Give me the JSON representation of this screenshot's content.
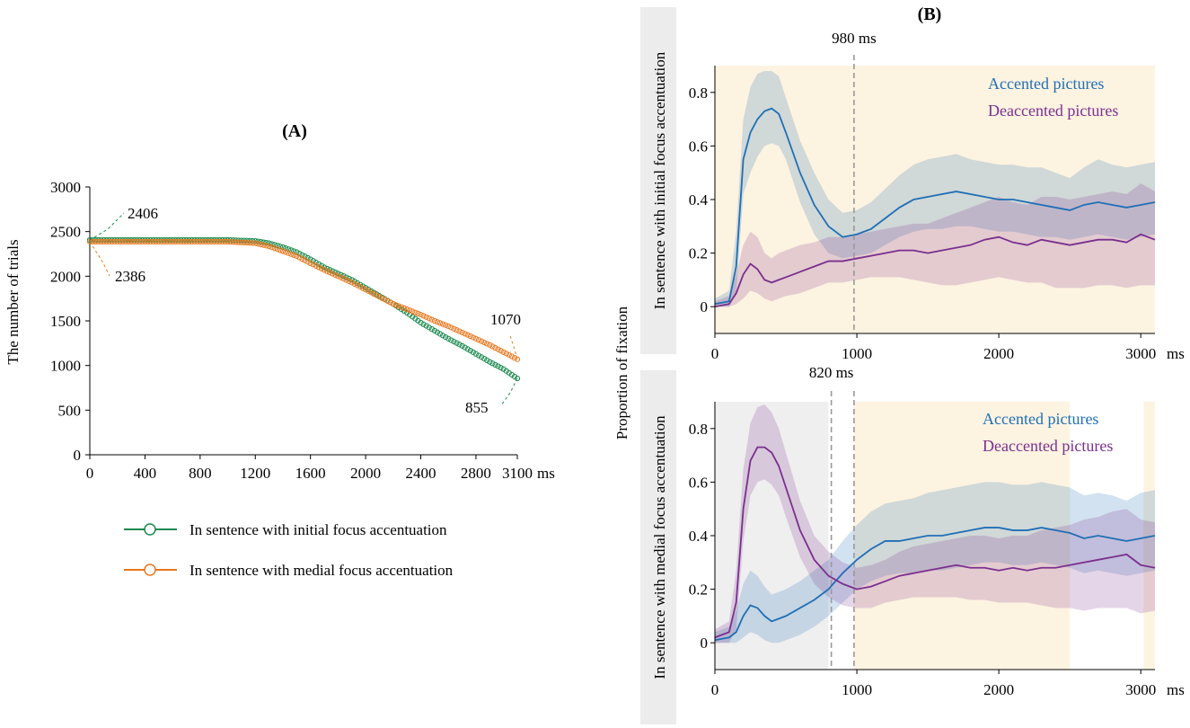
{
  "chart_data": [
    {
      "id": "A",
      "type": "line",
      "panel_label": "(A)",
      "title": "",
      "xlabel": "ms",
      "ylabel": "The number of trials",
      "xlim": [
        0,
        3100
      ],
      "ylim": [
        0,
        3000
      ],
      "x_ticks": [
        0,
        400,
        800,
        1200,
        1600,
        2000,
        2400,
        2800,
        3100
      ],
      "x_tick_labels": [
        "0",
        "400",
        "800",
        "1200",
        "1600",
        "2000",
        "2400",
        "2800",
        "3100"
      ],
      "y_ticks": [
        0,
        500,
        1000,
        1500,
        2000,
        2500,
        3000
      ],
      "y_tick_labels": [
        "0",
        "500",
        "1000",
        "1500",
        "2000",
        "2500",
        "3000"
      ],
      "grid": false,
      "series": [
        {
          "name": "In sentence with initial focus accentuation",
          "color": "#1a8a4e",
          "marker": "open-circle",
          "x": [
            0,
            400,
            800,
            1000,
            1200,
            1300,
            1400,
            1500,
            1600,
            1700,
            1800,
            1900,
            2000,
            2100,
            2200,
            2300,
            2400,
            2500,
            2600,
            2700,
            2800,
            2900,
            3000,
            3100
          ],
          "values": [
            2406,
            2406,
            2406,
            2406,
            2395,
            2370,
            2325,
            2270,
            2190,
            2100,
            2030,
            1960,
            1870,
            1780,
            1690,
            1590,
            1480,
            1390,
            1300,
            1220,
            1130,
            1040,
            960,
            855
          ]
        },
        {
          "name": "In sentence with medial focus accentuation",
          "color": "#e8771e",
          "marker": "open-circle",
          "x": [
            0,
            400,
            800,
            1000,
            1200,
            1300,
            1400,
            1500,
            1600,
            1700,
            1800,
            1900,
            2000,
            2100,
            2200,
            2300,
            2400,
            2500,
            2600,
            2700,
            2800,
            2900,
            3000,
            3100
          ],
          "values": [
            2386,
            2386,
            2386,
            2386,
            2370,
            2335,
            2280,
            2225,
            2145,
            2070,
            2000,
            1930,
            1850,
            1770,
            1690,
            1630,
            1570,
            1500,
            1440,
            1370,
            1300,
            1230,
            1150,
            1070
          ]
        }
      ],
      "annotations": [
        {
          "text": "2406",
          "x": 0,
          "y": 2406,
          "color": "#1a8a4e"
        },
        {
          "text": "2386",
          "x": 0,
          "y": 2386,
          "color": "#e8771e"
        },
        {
          "text": "1070",
          "x": 3100,
          "y": 1070,
          "color": "#e8771e"
        },
        {
          "text": "855",
          "x": 3100,
          "y": 855,
          "color": "#1a8a4e"
        }
      ]
    },
    {
      "id": "B-top",
      "type": "line",
      "panel_label": "(B)",
      "title": "",
      "row_label": "In sentence with initial focus accentuation",
      "shared_ylabel": "Proportion of fixation",
      "xlabel": "ms",
      "xlim": [
        0,
        3100
      ],
      "ylim": [
        -0.1,
        0.9
      ],
      "x_ticks": [
        0,
        1000,
        2000,
        3000
      ],
      "x_tick_labels": [
        "0",
        "1000",
        "2000",
        "3000"
      ],
      "y_ticks": [
        0,
        0.2,
        0.4,
        0.6,
        0.8
      ],
      "y_tick_labels": [
        "0",
        "0.2",
        "0.4",
        "0.6",
        "0.8"
      ],
      "grid": false,
      "shaded_regions": [
        {
          "from": 0,
          "to": 3100,
          "color": "#fdf3e1"
        }
      ],
      "vlines": [
        {
          "x": 980,
          "label": "980 ms"
        }
      ],
      "series": [
        {
          "name": "Accented pictures",
          "color": "#1f6fb5",
          "x": [
            0,
            100,
            150,
            200,
            250,
            300,
            350,
            400,
            450,
            500,
            600,
            700,
            800,
            900,
            1000,
            1100,
            1200,
            1300,
            1400,
            1500,
            1600,
            1700,
            1800,
            1900,
            2000,
            2100,
            2200,
            2300,
            2400,
            2500,
            2600,
            2700,
            2800,
            2900,
            3000,
            3100
          ],
          "values": [
            0.01,
            0.02,
            0.15,
            0.55,
            0.65,
            0.7,
            0.73,
            0.74,
            0.72,
            0.65,
            0.5,
            0.38,
            0.3,
            0.26,
            0.27,
            0.29,
            0.33,
            0.37,
            0.4,
            0.41,
            0.42,
            0.43,
            0.42,
            0.41,
            0.4,
            0.4,
            0.39,
            0.38,
            0.37,
            0.36,
            0.38,
            0.39,
            0.38,
            0.37,
            0.38,
            0.39
          ],
          "ci_low": [
            0.0,
            0.0,
            0.05,
            0.42,
            0.5,
            0.56,
            0.6,
            0.61,
            0.6,
            0.55,
            0.39,
            0.27,
            0.2,
            0.18,
            0.19,
            0.2,
            0.23,
            0.26,
            0.28,
            0.29,
            0.29,
            0.3,
            0.3,
            0.29,
            0.28,
            0.28,
            0.27,
            0.26,
            0.26,
            0.25,
            0.26,
            0.27,
            0.26,
            0.25,
            0.26,
            0.27
          ],
          "ci_high": [
            0.03,
            0.06,
            0.28,
            0.7,
            0.82,
            0.87,
            0.88,
            0.88,
            0.86,
            0.78,
            0.62,
            0.5,
            0.4,
            0.35,
            0.36,
            0.39,
            0.44,
            0.49,
            0.53,
            0.55,
            0.56,
            0.57,
            0.55,
            0.54,
            0.53,
            0.53,
            0.52,
            0.52,
            0.5,
            0.48,
            0.52,
            0.55,
            0.53,
            0.52,
            0.53,
            0.54
          ]
        },
        {
          "name": "Deaccented pictures",
          "color": "#7b2f8e",
          "x": [
            0,
            100,
            150,
            200,
            250,
            300,
            350,
            400,
            450,
            500,
            600,
            700,
            800,
            900,
            1000,
            1100,
            1200,
            1300,
            1400,
            1500,
            1600,
            1700,
            1800,
            1900,
            2000,
            2100,
            2200,
            2300,
            2400,
            2500,
            2600,
            2700,
            2800,
            2900,
            3000,
            3100
          ],
          "values": [
            0.0,
            0.01,
            0.05,
            0.12,
            0.16,
            0.14,
            0.1,
            0.09,
            0.1,
            0.11,
            0.13,
            0.15,
            0.17,
            0.17,
            0.18,
            0.19,
            0.2,
            0.21,
            0.21,
            0.2,
            0.21,
            0.22,
            0.23,
            0.25,
            0.26,
            0.24,
            0.23,
            0.25,
            0.24,
            0.23,
            0.24,
            0.25,
            0.25,
            0.24,
            0.27,
            0.25
          ],
          "ci_low": [
            0.0,
            0.0,
            0.01,
            0.03,
            0.06,
            0.05,
            0.03,
            0.02,
            0.03,
            0.04,
            0.05,
            0.07,
            0.09,
            0.09,
            0.1,
            0.11,
            0.11,
            0.11,
            0.1,
            0.09,
            0.08,
            0.08,
            0.09,
            0.1,
            0.11,
            0.1,
            0.09,
            0.09,
            0.07,
            0.07,
            0.07,
            0.08,
            0.08,
            0.07,
            0.08,
            0.08
          ],
          "ci_high": [
            0.02,
            0.04,
            0.12,
            0.23,
            0.28,
            0.26,
            0.2,
            0.18,
            0.2,
            0.21,
            0.23,
            0.24,
            0.26,
            0.26,
            0.27,
            0.28,
            0.29,
            0.3,
            0.31,
            0.31,
            0.33,
            0.35,
            0.37,
            0.39,
            0.41,
            0.39,
            0.38,
            0.41,
            0.41,
            0.4,
            0.41,
            0.42,
            0.43,
            0.42,
            0.46,
            0.43
          ]
        }
      ]
    },
    {
      "id": "B-bottom",
      "type": "line",
      "row_label": "In sentence with medial focus accentuation",
      "xlabel": "ms",
      "xlim": [
        0,
        3100
      ],
      "ylim": [
        -0.1,
        0.9
      ],
      "x_ticks": [
        0,
        1000,
        2000,
        3000
      ],
      "x_tick_labels": [
        "0",
        "1000",
        "2000",
        "3000"
      ],
      "y_ticks": [
        0,
        0.2,
        0.4,
        0.6,
        0.8
      ],
      "y_tick_labels": [
        "0",
        "0.2",
        "0.4",
        "0.6",
        "0.8"
      ],
      "grid": false,
      "shaded_regions": [
        {
          "from": 0,
          "to": 800,
          "color": "#efefef"
        },
        {
          "from": 980,
          "to": 2500,
          "color": "#fdf3e1"
        },
        {
          "from": 3020,
          "to": 3100,
          "color": "#fdf3e1"
        }
      ],
      "vlines": [
        {
          "x": 820,
          "label": "820 ms"
        },
        {
          "x": 980,
          "label": ""
        }
      ],
      "series": [
        {
          "name": "Accented pictures",
          "color": "#1f6fb5",
          "x": [
            0,
            100,
            150,
            200,
            250,
            300,
            350,
            400,
            450,
            500,
            600,
            700,
            800,
            900,
            1000,
            1100,
            1200,
            1300,
            1400,
            1500,
            1600,
            1700,
            1800,
            1900,
            2000,
            2100,
            2200,
            2300,
            2400,
            2500,
            2600,
            2700,
            2800,
            2900,
            3000,
            3100
          ],
          "values": [
            0.01,
            0.02,
            0.04,
            0.1,
            0.14,
            0.13,
            0.1,
            0.08,
            0.09,
            0.1,
            0.13,
            0.16,
            0.2,
            0.26,
            0.31,
            0.35,
            0.38,
            0.38,
            0.39,
            0.4,
            0.4,
            0.41,
            0.42,
            0.43,
            0.43,
            0.42,
            0.42,
            0.43,
            0.42,
            0.41,
            0.39,
            0.4,
            0.39,
            0.38,
            0.39,
            0.4
          ],
          "ci_low": [
            0.0,
            0.0,
            0.0,
            0.02,
            0.04,
            0.03,
            0.01,
            0.0,
            0.0,
            0.01,
            0.03,
            0.06,
            0.1,
            0.15,
            0.2,
            0.23,
            0.25,
            0.26,
            0.26,
            0.27,
            0.27,
            0.28,
            0.29,
            0.3,
            0.3,
            0.29,
            0.29,
            0.3,
            0.29,
            0.28,
            0.26,
            0.27,
            0.26,
            0.25,
            0.26,
            0.27
          ],
          "ci_high": [
            0.04,
            0.06,
            0.12,
            0.22,
            0.27,
            0.25,
            0.21,
            0.18,
            0.19,
            0.2,
            0.23,
            0.27,
            0.31,
            0.38,
            0.44,
            0.49,
            0.52,
            0.53,
            0.54,
            0.56,
            0.57,
            0.58,
            0.59,
            0.6,
            0.6,
            0.59,
            0.59,
            0.6,
            0.59,
            0.58,
            0.55,
            0.56,
            0.55,
            0.53,
            0.56,
            0.57
          ]
        },
        {
          "name": "Deaccented pictures",
          "color": "#7b2f8e",
          "x": [
            0,
            100,
            150,
            200,
            250,
            300,
            350,
            400,
            450,
            500,
            600,
            700,
            800,
            900,
            1000,
            1100,
            1200,
            1300,
            1400,
            1500,
            1600,
            1700,
            1800,
            1900,
            2000,
            2100,
            2200,
            2300,
            2400,
            2500,
            2600,
            2700,
            2800,
            2900,
            3000,
            3100
          ],
          "values": [
            0.02,
            0.04,
            0.15,
            0.5,
            0.68,
            0.73,
            0.73,
            0.71,
            0.66,
            0.58,
            0.42,
            0.31,
            0.25,
            0.22,
            0.2,
            0.21,
            0.23,
            0.25,
            0.26,
            0.27,
            0.28,
            0.29,
            0.28,
            0.28,
            0.27,
            0.28,
            0.27,
            0.28,
            0.28,
            0.29,
            0.3,
            0.31,
            0.32,
            0.33,
            0.29,
            0.28
          ],
          "ci_low": [
            0.0,
            0.0,
            0.05,
            0.38,
            0.55,
            0.6,
            0.61,
            0.59,
            0.55,
            0.47,
            0.32,
            0.22,
            0.17,
            0.14,
            0.13,
            0.13,
            0.15,
            0.16,
            0.17,
            0.17,
            0.17,
            0.17,
            0.16,
            0.16,
            0.15,
            0.15,
            0.15,
            0.14,
            0.13,
            0.13,
            0.12,
            0.13,
            0.13,
            0.13,
            0.11,
            0.12
          ],
          "ci_high": [
            0.05,
            0.08,
            0.27,
            0.65,
            0.82,
            0.88,
            0.89,
            0.86,
            0.8,
            0.71,
            0.53,
            0.4,
            0.34,
            0.3,
            0.28,
            0.29,
            0.31,
            0.34,
            0.36,
            0.37,
            0.38,
            0.39,
            0.4,
            0.4,
            0.39,
            0.4,
            0.4,
            0.42,
            0.43,
            0.44,
            0.46,
            0.47,
            0.49,
            0.5,
            0.46,
            0.45
          ]
        }
      ]
    }
  ]
}
